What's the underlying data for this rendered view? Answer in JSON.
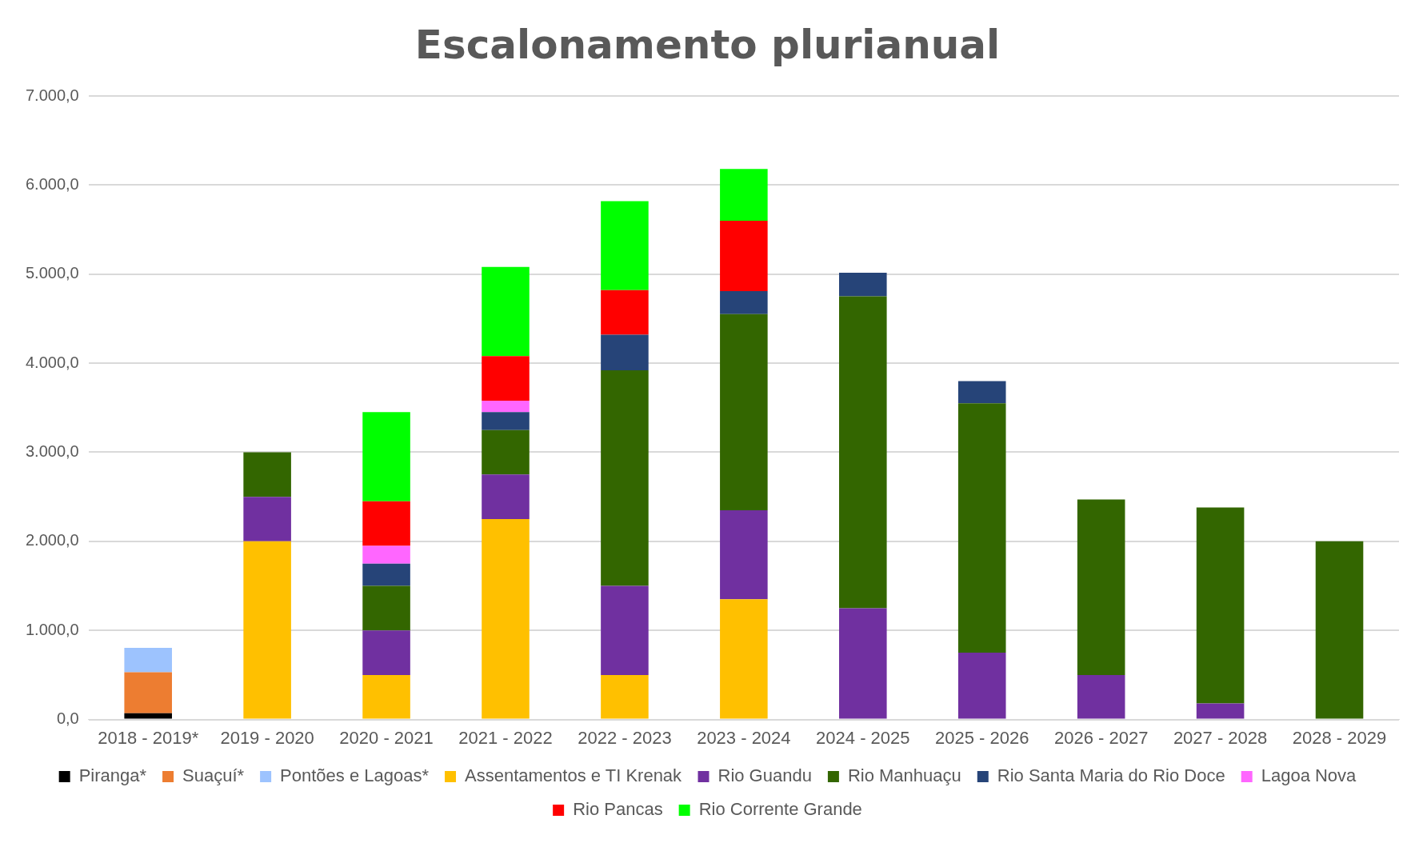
{
  "chart_data": {
    "type": "bar",
    "title": "Escalonamento plurianual",
    "stacked": true,
    "grid": "y",
    "legend": "bottom",
    "categories": [
      "2018 - 2019*",
      "2019 - 2020",
      "2020 - 2021",
      "2021 - 2022",
      "2022 - 2023",
      "2023 - 2024",
      "2024 - 2025",
      "2025 - 2026",
      "2026 - 2027",
      "2027 - 2028",
      "2028 - 2029"
    ],
    "ylim": [
      0,
      7000
    ],
    "yticks": [
      {
        "value": 0,
        "label": "0,0"
      },
      {
        "value": 1000,
        "label": "1.000,0"
      },
      {
        "value": 2000,
        "label": "2.000,0"
      },
      {
        "value": 3000,
        "label": "3.000,0"
      },
      {
        "value": 4000,
        "label": "4.000,0"
      },
      {
        "value": 5000,
        "label": "5.000,0"
      },
      {
        "value": 6000,
        "label": "6.000,0"
      },
      {
        "value": 7000,
        "label": "7.000,0"
      }
    ],
    "series": [
      {
        "name": "Piranga*",
        "color": "#000000",
        "values": [
          70,
          null,
          null,
          null,
          null,
          null,
          null,
          null,
          null,
          null,
          null
        ]
      },
      {
        "name": "Suaçuí*",
        "color": "#ed7d31",
        "values": [
          460,
          null,
          null,
          null,
          null,
          null,
          null,
          null,
          null,
          null,
          null
        ]
      },
      {
        "name": "Pontões e Lagoas*",
        "color": "#9dc3fe",
        "values": [
          275,
          null,
          null,
          null,
          null,
          null,
          null,
          null,
          null,
          null,
          null
        ]
      },
      {
        "name": "Assentamentos e TI Krenak",
        "color": "#ffc000",
        "values": [
          null,
          2000,
          500,
          2250,
          500,
          1350,
          null,
          null,
          null,
          null,
          null
        ]
      },
      {
        "name": "Rio Guandu",
        "color": "#7030a0",
        "values": [
          null,
          500,
          500,
          500,
          1000,
          1000,
          1250,
          750,
          500,
          180,
          null
        ]
      },
      {
        "name": "Rio Manhuaçu",
        "color": "#336600",
        "values": [
          null,
          500,
          500,
          500,
          2420,
          2200,
          3500,
          2800,
          1970,
          2200,
          2000
        ]
      },
      {
        "name": "Rio Santa Maria do Rio Doce",
        "color": "#264478",
        "values": [
          null,
          null,
          250,
          200,
          400,
          260,
          265,
          250,
          null,
          null,
          null
        ]
      },
      {
        "name": "Lagoa Nova",
        "color": "#ff66ff",
        "values": [
          null,
          null,
          200,
          130,
          null,
          null,
          null,
          null,
          null,
          null,
          null
        ]
      },
      {
        "name": "Rio Pancas",
        "color": "#ff0000",
        "values": [
          null,
          null,
          500,
          500,
          500,
          790,
          null,
          null,
          null,
          null,
          null
        ]
      },
      {
        "name": "Rio Corrente Grande",
        "color": "#00ff00",
        "values": [
          null,
          null,
          1000,
          1000,
          1000,
          580,
          null,
          null,
          null,
          null,
          null
        ]
      }
    ]
  }
}
